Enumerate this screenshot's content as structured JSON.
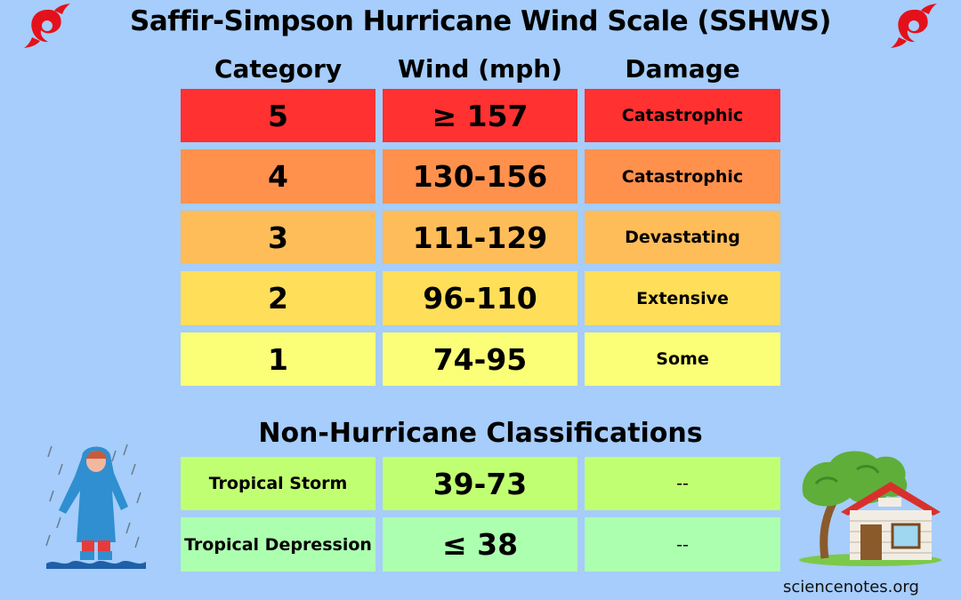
{
  "title": "Saffir-Simpson Hurricane Wind Scale (SSHWS)",
  "headers": {
    "category": "Category",
    "wind": "Wind (mph)",
    "damage": "Damage"
  },
  "hurricane_rows": [
    {
      "category": "5",
      "wind": "≥ 157",
      "damage": "Catastrophic",
      "color": "#ff3131"
    },
    {
      "category": "4",
      "wind": "130-156",
      "damage": "Catastrophic",
      "color": "#ff914d"
    },
    {
      "category": "3",
      "wind": "111-129",
      "damage": "Devastating",
      "color": "#ffbd59"
    },
    {
      "category": "2",
      "wind": "96-110",
      "damage": "Extensive",
      "color": "#ffde59"
    },
    {
      "category": "1",
      "wind": "74-95",
      "damage": "Some",
      "color": "#fbff77"
    }
  ],
  "non_hurricane_title": "Non-Hurricane Classifications",
  "non_hurricane_rows": [
    {
      "name": "Tropical Storm",
      "wind": "39-73",
      "damage": "--",
      "color": "#c1ff72"
    },
    {
      "name": "Tropical Depression",
      "wind": "≤ 38",
      "damage": "--",
      "color": "#adffb0"
    }
  ],
  "credit": "sciencenotes.org",
  "icons": {
    "hurricane": "hurricane-icon",
    "person": "person-in-rain-illustration",
    "house": "house-and-tree-illustration"
  },
  "chart_data": {
    "type": "table",
    "title": "Saffir-Simpson Hurricane Wind Scale (SSHWS)",
    "columns": [
      "Category",
      "Wind (mph)",
      "Damage"
    ],
    "rows": [
      [
        "5",
        "≥ 157",
        "Catastrophic"
      ],
      [
        "4",
        "130-156",
        "Catastrophic"
      ],
      [
        "3",
        "111-129",
        "Devastating"
      ],
      [
        "2",
        "96-110",
        "Extensive"
      ],
      [
        "1",
        "74-95",
        "Some"
      ]
    ],
    "secondary_title": "Non-Hurricane Classifications",
    "secondary_rows": [
      [
        "Tropical Storm",
        "39-73",
        "--"
      ],
      [
        "Tropical Depression",
        "≤ 38",
        "--"
      ]
    ]
  }
}
